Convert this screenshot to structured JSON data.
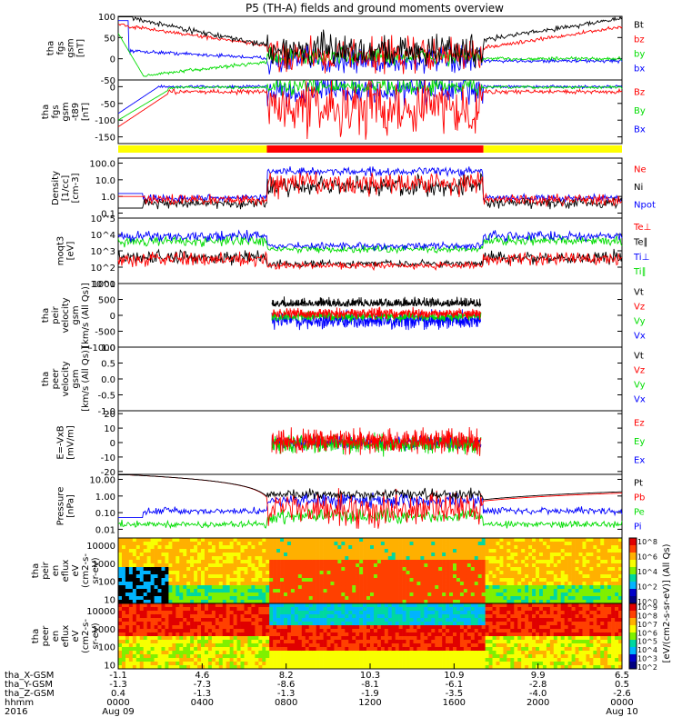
{
  "title": "P5 (TH-A) fields and ground moments overview",
  "chart_data": [
    {
      "type": "line",
      "id": "p1",
      "ylabel": [
        "tha",
        "fgs",
        "gsm",
        "[nT]"
      ],
      "ylim": [
        -50,
        100
      ],
      "ticks": [
        [
          "100",
          100
        ],
        [
          "50",
          50
        ],
        [
          "0",
          0
        ],
        [
          "-50",
          -50
        ]
      ],
      "series": [
        {
          "name": "Bt",
          "color": "#000000"
        },
        {
          "name": "bz",
          "color": "#ff0000"
        },
        {
          "name": "by",
          "color": "#00dd00"
        },
        {
          "name": "bx",
          "color": "#0000ff"
        }
      ]
    },
    {
      "type": "line",
      "id": "p2",
      "ylabel": [
        "tha",
        "fgs",
        "gsm",
        "-t89",
        "[nT]"
      ],
      "ylim": [
        -170,
        20
      ],
      "ticks": [
        [
          "0",
          0
        ],
        [
          "-50",
          -50
        ],
        [
          "-100",
          -100
        ],
        [
          "-150",
          -150
        ]
      ],
      "series": [
        {
          "name": "Bz",
          "color": "#ff0000"
        },
        {
          "name": "By",
          "color": "#00dd00"
        },
        {
          "name": "Bx",
          "color": "#0000ff"
        }
      ]
    },
    {
      "type": "line",
      "id": "p3",
      "ylabel": [
        "Density",
        "[1/cc]",
        "[cm-3]"
      ],
      "ylim": [
        0.05,
        200
      ],
      "log": true,
      "ticks": [
        [
          "100.0",
          100
        ],
        [
          "10.0",
          10
        ],
        [
          "1.0",
          1
        ],
        [
          "0.1",
          0.1
        ]
      ],
      "series": [
        {
          "name": "Ne",
          "color": "#ff0000"
        },
        {
          "name": "Ni",
          "color": "#000000"
        },
        {
          "name": "Npot",
          "color": "#0000ff"
        }
      ]
    },
    {
      "type": "line",
      "id": "p4",
      "ylabel": [
        "moqt3",
        "[eV]"
      ],
      "ylim": [
        10,
        100000
      ],
      "log": true,
      "ticks": [
        [
          "10^5",
          100000
        ],
        [
          "10^4",
          10000
        ],
        [
          "10^3",
          1000
        ],
        [
          "10^2",
          100
        ],
        [
          "10^1",
          10
        ]
      ],
      "series": [
        {
          "name": "Te⊥",
          "color": "#ff0000"
        },
        {
          "name": "Te∥",
          "color": "#000000"
        },
        {
          "name": "Ti⊥",
          "color": "#0000ff"
        },
        {
          "name": "Ti∥",
          "color": "#00dd00"
        }
      ]
    },
    {
      "type": "line",
      "id": "p5",
      "ylabel": [
        "tha",
        "peir",
        "velocity",
        "gsm",
        "[km/s (All Qs)]"
      ],
      "ylim": [
        -1000,
        1000
      ],
      "ticks": [
        [
          "1000",
          1000
        ],
        [
          "500",
          500
        ],
        [
          "0",
          0
        ],
        [
          "-500",
          -500
        ],
        [
          "-1000",
          -1000
        ]
      ],
      "series": [
        {
          "name": "Vt",
          "color": "#000000"
        },
        {
          "name": "Vz",
          "color": "#ff0000"
        },
        {
          "name": "Vy",
          "color": "#00dd00"
        },
        {
          "name": "Vx",
          "color": "#0000ff"
        }
      ]
    },
    {
      "type": "line",
      "id": "p6",
      "ylabel": [
        "tha",
        "peer",
        "velocity",
        "gsm",
        "[km/s (All Qs)]"
      ],
      "ylim": [
        -1,
        1
      ],
      "ticks": [
        [
          "1.0",
          1
        ],
        [
          "0.5",
          0.5
        ],
        [
          "0.0",
          0
        ],
        [
          "-0.5",
          -0.5
        ],
        [
          "-1.0",
          -1
        ]
      ],
      "series": [
        {
          "name": "Vt",
          "color": "#000000"
        },
        {
          "name": "Vz",
          "color": "#ff0000"
        },
        {
          "name": "Vy",
          "color": "#00dd00"
        },
        {
          "name": "Vx",
          "color": "#0000ff"
        }
      ]
    },
    {
      "type": "line",
      "id": "p7",
      "ylabel": [
        "E=-VxB",
        "[mV/m]"
      ],
      "ylim": [
        -22,
        22
      ],
      "ticks": [
        [
          "20",
          20
        ],
        [
          "10",
          10
        ],
        [
          "0",
          0
        ],
        [
          "-10",
          -10
        ],
        [
          "-20",
          -20
        ]
      ],
      "series": [
        {
          "name": "Ez",
          "color": "#ff0000"
        },
        {
          "name": "Ey",
          "color": "#00dd00"
        },
        {
          "name": "Ex",
          "color": "#0000ff"
        }
      ]
    },
    {
      "type": "line",
      "id": "p8",
      "ylabel": [
        "Pressure",
        "[nPa]"
      ],
      "ylim": [
        0.003,
        20
      ],
      "log": true,
      "ticks": [
        [
          "10.00",
          10
        ],
        [
          "1.00",
          1
        ],
        [
          "0.10",
          0.1
        ],
        [
          "0.01",
          0.01
        ]
      ],
      "series": [
        {
          "name": "Pt",
          "color": "#000000"
        },
        {
          "name": "Pb",
          "color": "#ff0000"
        },
        {
          "name": "Pe",
          "color": "#00dd00"
        },
        {
          "name": "Pi",
          "color": "#0000ff"
        }
      ]
    },
    {
      "type": "heatmap",
      "id": "p9",
      "ylabel": [
        "tha",
        "peir",
        "en",
        "eflux",
        "eV",
        "(cm2-s-",
        "sr-eV)"
      ],
      "ylim": [
        6,
        25000
      ],
      "log": true,
      "ticks": [
        [
          "10000",
          10000
        ],
        [
          "1000",
          1000
        ],
        [
          "100",
          100
        ],
        [
          "10",
          10
        ]
      ]
    },
    {
      "type": "heatmap",
      "id": "p10",
      "ylabel": [
        "tha",
        "peer",
        "en",
        "eflux",
        "eV",
        "(cm2-s-",
        "sr-eV)"
      ],
      "ylim": [
        6,
        25000
      ],
      "log": true,
      "ticks": [
        [
          "10000",
          10000
        ],
        [
          "1000",
          1000
        ],
        [
          "100",
          100
        ],
        [
          "10",
          10
        ]
      ]
    }
  ],
  "colorbar": {
    "label": "[eV/(cm2-s-sr-eV)] (All Qs)",
    "ticks_upper": [
      "10^8",
      "10^6",
      "10^4",
      "10^2",
      "10^0"
    ],
    "ticks_lower": [
      "10^9",
      "10^8",
      "10^7",
      "10^6",
      "10^5",
      "10^4",
      "10^3",
      "10^2"
    ]
  },
  "mode_bar": {
    "colors": [
      "#ffff00",
      "#ff0000",
      "#ffff00"
    ]
  },
  "x_axis": {
    "row_labels": [
      "tha_X-GSM",
      "tha_Y-GSM",
      "tha_Z-GSM",
      "hhmm",
      "2016"
    ],
    "columns": [
      {
        "v": [
          "-1.1",
          "-1.3",
          "0.4",
          "0000",
          "Aug 09"
        ]
      },
      {
        "v": [
          "4.6",
          "-7.3",
          "-1.3",
          "0400",
          ""
        ]
      },
      {
        "v": [
          "8.2",
          "-8.6",
          "-1.3",
          "0800",
          ""
        ]
      },
      {
        "v": [
          "10.3",
          "-8.1",
          "-1.9",
          "1200",
          ""
        ]
      },
      {
        "v": [
          "10.9",
          "-6.1",
          "-3.5",
          "1600",
          ""
        ]
      },
      {
        "v": [
          "9.9",
          "-2.8",
          "-4.0",
          "2000",
          ""
        ]
      },
      {
        "v": [
          "6.5",
          "0.5",
          "-2.6",
          "0000",
          "Aug 10"
        ]
      }
    ]
  }
}
